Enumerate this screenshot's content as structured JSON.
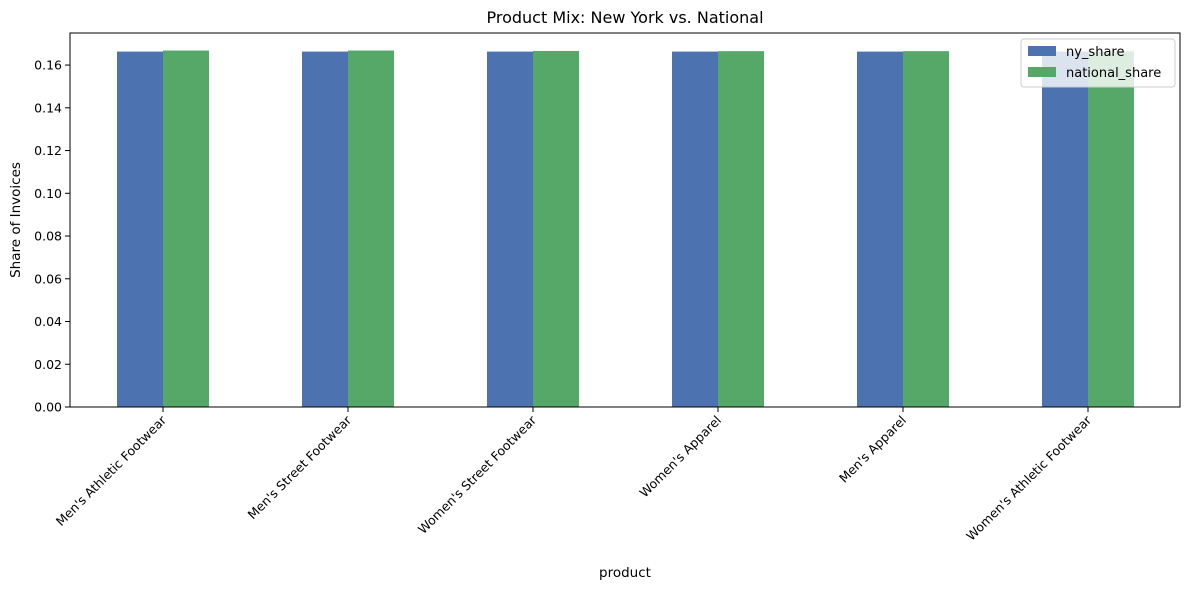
{
  "chart_data": {
    "type": "bar",
    "title": "Product Mix: New York vs. National",
    "xlabel": "product",
    "ylabel": "Share of Invoices",
    "categories": [
      "Men's Athletic Footwear",
      "Men's Street Footwear",
      "Women's Street Footwear",
      "Women's Apparel",
      "Men's Apparel",
      "Women's Athletic Footwear"
    ],
    "series": [
      {
        "name": "ny_share",
        "color": "#4c72b0",
        "values": [
          0.1663,
          0.1663,
          0.1663,
          0.1663,
          0.1663,
          0.1663
        ]
      },
      {
        "name": "national_share",
        "color": "#55a868",
        "values": [
          0.1668,
          0.1668,
          0.1666,
          0.1665,
          0.1665,
          0.1664
        ]
      }
    ],
    "ylim": [
      0,
      0.175
    ],
    "yticks": [
      "0.00",
      "0.02",
      "0.04",
      "0.06",
      "0.08",
      "0.10",
      "0.12",
      "0.14",
      "0.16"
    ],
    "grid": false,
    "legend_position": "top-right"
  }
}
